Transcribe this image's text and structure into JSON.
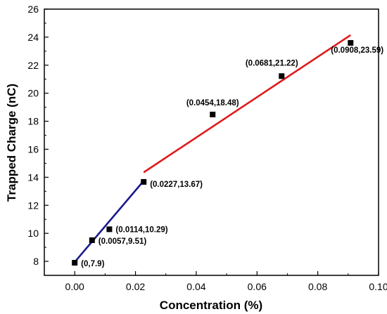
{
  "chart_data": {
    "type": "scatter",
    "xlabel": "Concentration (%)",
    "ylabel": "Trapped Charge (nC)",
    "xlim": [
      -0.01,
      0.1
    ],
    "ylim": [
      7,
      26
    ],
    "x_ticks": [
      0.0,
      0.02,
      0.04,
      0.06,
      0.08,
      0.1
    ],
    "x_tick_labels": [
      "0.00",
      "0.02",
      "0.04",
      "0.06",
      "0.08",
      "0.10"
    ],
    "y_ticks": [
      8,
      10,
      12,
      14,
      16,
      18,
      20,
      22,
      24,
      26
    ],
    "y_tick_labels": [
      "8",
      "10",
      "12",
      "14",
      "16",
      "18",
      "20",
      "22",
      "24",
      "26"
    ],
    "grid": false,
    "points": [
      {
        "x": 0,
        "y": 7.9,
        "label": "(0,7.9)"
      },
      {
        "x": 0.0057,
        "y": 9.51,
        "label": "(0.0057,9.51)"
      },
      {
        "x": 0.0114,
        "y": 10.29,
        "label": "(0.0114,10.29)"
      },
      {
        "x": 0.0227,
        "y": 13.67,
        "label": "(0.0227,13.67)"
      },
      {
        "x": 0.0454,
        "y": 18.48,
        "label": "(0.0454,18.48)"
      },
      {
        "x": 0.0681,
        "y": 21.22,
        "label": "(0.0681,21.22)"
      },
      {
        "x": 0.0908,
        "y": 23.59,
        "label": "(0.0908,23.59)"
      }
    ],
    "fit_lines": [
      {
        "color": "#1a1a8c",
        "x": [
          0,
          0.0227
        ],
        "y": [
          7.95,
          13.75
        ]
      },
      {
        "color": "#e01b1b",
        "x": [
          0.0227,
          0.0908
        ],
        "y": [
          14.35,
          24.15
        ]
      }
    ],
    "marker_color": "#000000"
  }
}
